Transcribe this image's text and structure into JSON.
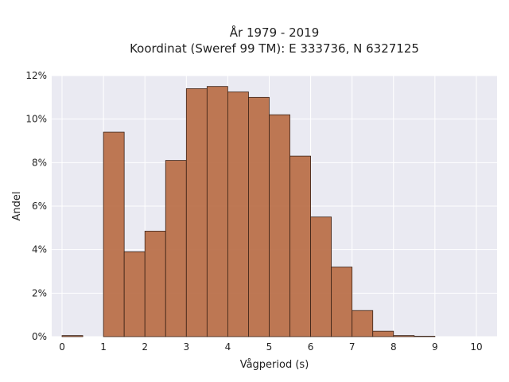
{
  "chart_data": {
    "type": "bar",
    "title": "År 1979 - 2019",
    "subtitle": "Koordinat (Sweref 99 TM): E 333736, N 6327125",
    "xlabel": "Vågperiod (s)",
    "ylabel": "Andel",
    "xlim": [
      -0.25,
      10.5
    ],
    "ylim": [
      0,
      12
    ],
    "x_ticks": [
      0,
      1,
      2,
      3,
      4,
      5,
      6,
      7,
      8,
      9,
      10
    ],
    "y_ticks": [
      0,
      2,
      4,
      6,
      8,
      10,
      12
    ],
    "y_tick_labels": [
      "0%",
      "2%",
      "4%",
      "6%",
      "8%",
      "10%",
      "12%"
    ],
    "grid": true,
    "bar_color": "#b86c45",
    "bins": [
      {
        "start": 0.0,
        "end": 0.5,
        "value": 0.05
      },
      {
        "start": 0.5,
        "end": 1.0,
        "value": 0.0
      },
      {
        "start": 1.0,
        "end": 1.5,
        "value": 9.4
      },
      {
        "start": 1.5,
        "end": 2.0,
        "value": 3.9
      },
      {
        "start": 2.0,
        "end": 2.5,
        "value": 4.85
      },
      {
        "start": 2.5,
        "end": 3.0,
        "value": 8.1
      },
      {
        "start": 3.0,
        "end": 3.5,
        "value": 11.4
      },
      {
        "start": 3.5,
        "end": 4.0,
        "value": 11.5
      },
      {
        "start": 4.0,
        "end": 4.5,
        "value": 11.25
      },
      {
        "start": 4.5,
        "end": 5.0,
        "value": 11.0
      },
      {
        "start": 5.0,
        "end": 5.5,
        "value": 10.2
      },
      {
        "start": 5.5,
        "end": 6.0,
        "value": 8.3
      },
      {
        "start": 6.0,
        "end": 6.5,
        "value": 5.5
      },
      {
        "start": 6.5,
        "end": 7.0,
        "value": 3.2
      },
      {
        "start": 7.0,
        "end": 7.5,
        "value": 1.2
      },
      {
        "start": 7.5,
        "end": 8.0,
        "value": 0.25
      },
      {
        "start": 8.0,
        "end": 8.5,
        "value": 0.05
      },
      {
        "start": 8.5,
        "end": 9.0,
        "value": 0.02
      }
    ]
  }
}
